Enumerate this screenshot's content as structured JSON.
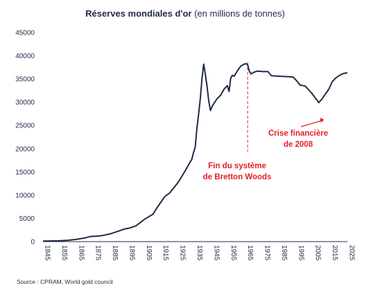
{
  "chart_data": {
    "type": "line",
    "title_bold": "Réserves mondiales d'or",
    "title_normal": " (en millions de tonnes)",
    "xlabel": "",
    "ylabel": "",
    "xlim": [
      1845,
      2025
    ],
    "ylim": [
      0,
      45000
    ],
    "y_ticks": [
      0,
      5000,
      10000,
      15000,
      20000,
      25000,
      30000,
      35000,
      40000,
      45000
    ],
    "x_ticks": [
      1845,
      1855,
      1865,
      1875,
      1885,
      1895,
      1905,
      1915,
      1925,
      1935,
      1945,
      1955,
      1965,
      1975,
      1985,
      1995,
      2005,
      2015,
      2025
    ],
    "grid": false,
    "line_color": "#1f2a44",
    "annotation_color": "#e41e26",
    "series": [
      {
        "x": [
          1845,
          1850,
          1855,
          1860,
          1865,
          1870,
          1873,
          1878,
          1880,
          1885,
          1890,
          1893,
          1896,
          1900,
          1905,
          1910,
          1913,
          1917,
          1920,
          1925,
          1929,
          1931,
          1933,
          1934,
          1935,
          1936,
          1937,
          1938,
          1939,
          1940,
          1941,
          1942,
          1943,
          1944,
          1945,
          1946,
          1948,
          1950,
          1952,
          1954,
          1955,
          1956,
          1957,
          1958,
          1960,
          1962,
          1964,
          1965,
          1966,
          1967,
          1968,
          1970,
          1972,
          1975,
          1978,
          1980,
          1985,
          1990,
          1993,
          1995,
          1997,
          2000,
          2002,
          2004,
          2006,
          2007,
          2008,
          2010,
          2012,
          2014,
          2016,
          2018,
          2020,
          2022,
          2024,
          2025
        ],
        "y": [
          100,
          150,
          200,
          300,
          500,
          800,
          1100,
          1200,
          1300,
          1700,
          2300,
          2700,
          2900,
          3400,
          4800,
          5900,
          7600,
          9700,
          10500,
          12800,
          15200,
          16500,
          17700,
          19200,
          20300,
          24300,
          27400,
          30700,
          35100,
          38200,
          36000,
          33400,
          30300,
          28200,
          29100,
          29700,
          30800,
          31500,
          32800,
          33600,
          32300,
          35200,
          35800,
          35600,
          36800,
          37800,
          38200,
          38300,
          38100,
          36700,
          36100,
          36500,
          36700,
          36600,
          36600,
          35700,
          35600,
          35500,
          35400,
          34600,
          33700,
          33500,
          32700,
          31900,
          30900,
          30500,
          29900,
          30700,
          31800,
          32800,
          34400,
          35200,
          35700,
          36100,
          36300,
          36300
        ]
      }
    ],
    "annotations": [
      {
        "lines": [
          "Fin du système",
          "de Bretton Woods"
        ],
        "x": 1966
      },
      {
        "lines": [
          "Crise financière",
          "de 2008"
        ],
        "x": 2008
      }
    ],
    "source": "Source : CPRAM, World gold council"
  }
}
